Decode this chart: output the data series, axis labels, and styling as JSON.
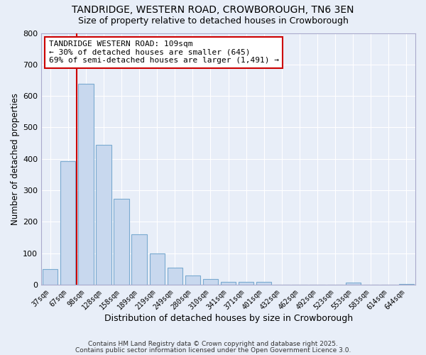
{
  "title": "TANDRIDGE, WESTERN ROAD, CROWBOROUGH, TN6 3EN",
  "subtitle": "Size of property relative to detached houses in Crowborough",
  "xlabel": "Distribution of detached houses by size in Crowborough",
  "ylabel": "Number of detached properties",
  "categories": [
    "37sqm",
    "67sqm",
    "98sqm",
    "128sqm",
    "158sqm",
    "189sqm",
    "219sqm",
    "249sqm",
    "280sqm",
    "310sqm",
    "341sqm",
    "371sqm",
    "401sqm",
    "432sqm",
    "462sqm",
    "492sqm",
    "523sqm",
    "553sqm",
    "583sqm",
    "614sqm",
    "644sqm"
  ],
  "values": [
    50,
    393,
    638,
    444,
    272,
    160,
    100,
    55,
    30,
    18,
    10,
    10,
    10,
    0,
    0,
    0,
    0,
    7,
    0,
    0,
    3
  ],
  "bar_color": "#c8d8ee",
  "bar_edge_color": "#7aaad0",
  "vline_x": 2,
  "vline_color": "#cc0000",
  "annotation_text": "TANDRIDGE WESTERN ROAD: 109sqm\n← 30% of detached houses are smaller (645)\n69% of semi-detached houses are larger (1,491) →",
  "annotation_box_color": "#ffffff",
  "annotation_box_edge_color": "#cc0000",
  "ylim": [
    0,
    800
  ],
  "yticks": [
    0,
    100,
    200,
    300,
    400,
    500,
    600,
    700,
    800
  ],
  "background_color": "#e8eef8",
  "plot_bg_color": "#e8eef8",
  "grid_color": "#ffffff",
  "footer_line1": "Contains HM Land Registry data © Crown copyright and database right 2025.",
  "footer_line2": "Contains public sector information licensed under the Open Government Licence 3.0.",
  "title_fontsize": 10,
  "subtitle_fontsize": 9,
  "xlabel_fontsize": 9,
  "ylabel_fontsize": 8.5
}
